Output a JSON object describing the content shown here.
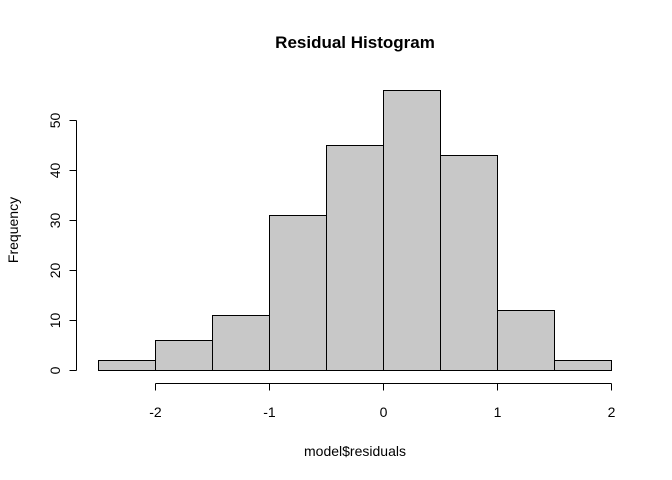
{
  "chart_data": {
    "type": "bar",
    "title": "Residual Histogram",
    "xlabel": "model$residuals",
    "ylabel": "Frequency",
    "bins": [
      {
        "start": -2.5,
        "end": -2.0,
        "count": 2
      },
      {
        "start": -2.0,
        "end": -1.5,
        "count": 6
      },
      {
        "start": -1.5,
        "end": -1.0,
        "count": 11
      },
      {
        "start": -1.0,
        "end": -0.5,
        "count": 31
      },
      {
        "start": -0.5,
        "end": 0.0,
        "count": 45
      },
      {
        "start": 0.0,
        "end": 0.5,
        "count": 56
      },
      {
        "start": 0.5,
        "end": 1.0,
        "count": 43
      },
      {
        "start": 1.0,
        "end": 1.5,
        "count": 12
      },
      {
        "start": 1.5,
        "end": 2.0,
        "count": 2
      }
    ],
    "xticks": [
      -2,
      -1,
      0,
      1,
      2
    ],
    "xtick_labels": [
      "-2",
      "-1",
      "0",
      "1",
      "2"
    ],
    "yticks": [
      0,
      10,
      20,
      30,
      40,
      50
    ],
    "ytick_labels": [
      "0",
      "10",
      "20",
      "30",
      "40",
      "50"
    ],
    "xlim": [
      -2.5,
      2.0
    ],
    "ylim": [
      0,
      56
    ],
    "bar_color": "#c8c8c8",
    "grid": false
  }
}
